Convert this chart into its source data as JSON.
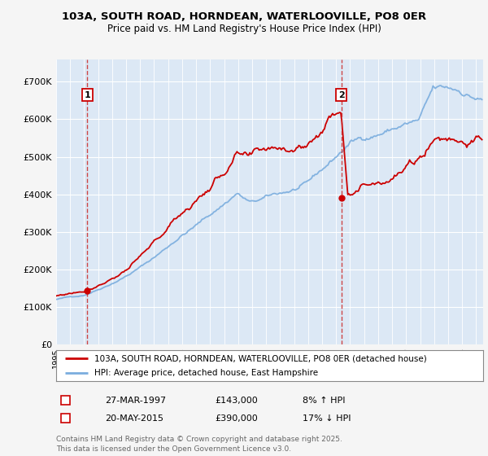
{
  "title_line1": "103A, SOUTH ROAD, HORNDEAN, WATERLOOVILLE, PO8 0ER",
  "title_line2": "Price paid vs. HM Land Registry's House Price Index (HPI)",
  "legend_line1": "103A, SOUTH ROAD, HORNDEAN, WATERLOOVILLE, PO8 0ER (detached house)",
  "legend_line2": "HPI: Average price, detached house, East Hampshire",
  "annotation1_date": "27-MAR-1997",
  "annotation1_price": "£143,000",
  "annotation1_hpi": "8% ↑ HPI",
  "annotation2_date": "20-MAY-2015",
  "annotation2_price": "£390,000",
  "annotation2_hpi": "17% ↓ HPI",
  "footer": "Contains HM Land Registry data © Crown copyright and database right 2025.\nThis data is licensed under the Open Government Licence v3.0.",
  "bg_color": "#dce8f5",
  "fig_bg_color": "#f5f5f5",
  "grid_color": "#ffffff",
  "red_line_color": "#cc0000",
  "blue_line_color": "#7aadde",
  "ylim": [
    0,
    760000
  ],
  "yticks": [
    0,
    100000,
    200000,
    300000,
    400000,
    500000,
    600000,
    700000
  ],
  "ytick_labels": [
    "£0",
    "£100K",
    "£200K",
    "£300K",
    "£400K",
    "£500K",
    "£600K",
    "£700K"
  ],
  "xmin": 1995,
  "xmax": 2025.5,
  "marker1_x": 1997.23,
  "marker1_y": 143000,
  "marker2_x": 2015.38,
  "marker2_y": 390000
}
